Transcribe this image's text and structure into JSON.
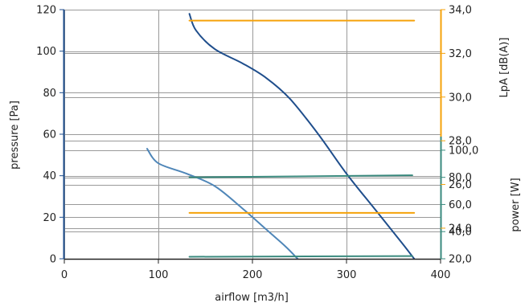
{
  "chart_data": {
    "type": "line",
    "xlabel": "airflow [m3/h]",
    "ylabel_left": "pressure [Pa]",
    "ylabel_right_top": "LpA [dB(A)]",
    "ylabel_right_bottom": "power [W]",
    "xlim": [
      0,
      400
    ],
    "ylim": [
      0,
      120
    ],
    "x_ticks": [
      "0",
      "100",
      "200",
      "300",
      "400"
    ],
    "y_ticks_left": [
      "0",
      "20",
      "40",
      "60",
      "80",
      "100",
      "120"
    ],
    "lpa_axis": {
      "range": [
        22.6,
        34.0
      ],
      "ticks": [
        "24,0",
        "26,0",
        "28,0",
        "30,0",
        "32,0",
        "34,0"
      ],
      "tick_values": [
        24,
        26,
        28,
        30,
        32,
        34
      ]
    },
    "power_axis": {
      "range": [
        20,
        110
      ],
      "ticks": [
        "20,0",
        "40,0",
        "60,0",
        "80,0",
        "100,0"
      ],
      "tick_values": [
        20,
        40,
        60,
        80,
        100
      ]
    },
    "grid": true,
    "colors": {
      "pressure_high": "#1f4e8c",
      "pressure_low": "#4f86b8",
      "power": "#3a8a7e",
      "lpa": "#f5a20a",
      "left_axis": "#1f4e8c",
      "right_axis_power": "#3a8a7e",
      "right_axis_lpa": "#f5a20a"
    },
    "series": [
      {
        "key": "pressure_high",
        "axis": "pressure",
        "x": [
          133,
          140,
          160,
          190,
          215,
          240,
          270,
          300,
          330,
          360,
          372
        ],
        "y": [
          118,
          110,
          101,
          94,
          87,
          77,
          60,
          41,
          24,
          7,
          0
        ]
      },
      {
        "key": "pressure_low",
        "axis": "pressure",
        "x": [
          88,
          100,
          130,
          160,
          190,
          215,
          235,
          248
        ],
        "y": [
          53,
          46,
          41,
          35,
          24,
          14,
          6,
          0
        ]
      },
      {
        "key": "power_high",
        "axis": "power",
        "x": [
          133,
          370
        ],
        "y": [
          80.0,
          81.5
        ]
      },
      {
        "key": "power_low",
        "axis": "power",
        "x": [
          133,
          370
        ],
        "y": [
          21.5,
          22.0
        ]
      },
      {
        "key": "lpa_high",
        "axis": "lpa",
        "x": [
          133,
          372
        ],
        "y": [
          33.5,
          33.5
        ]
      },
      {
        "key": "lpa_low",
        "axis": "lpa",
        "x": [
          133,
          372
        ],
        "y": [
          24.7,
          24.7
        ]
      }
    ]
  }
}
